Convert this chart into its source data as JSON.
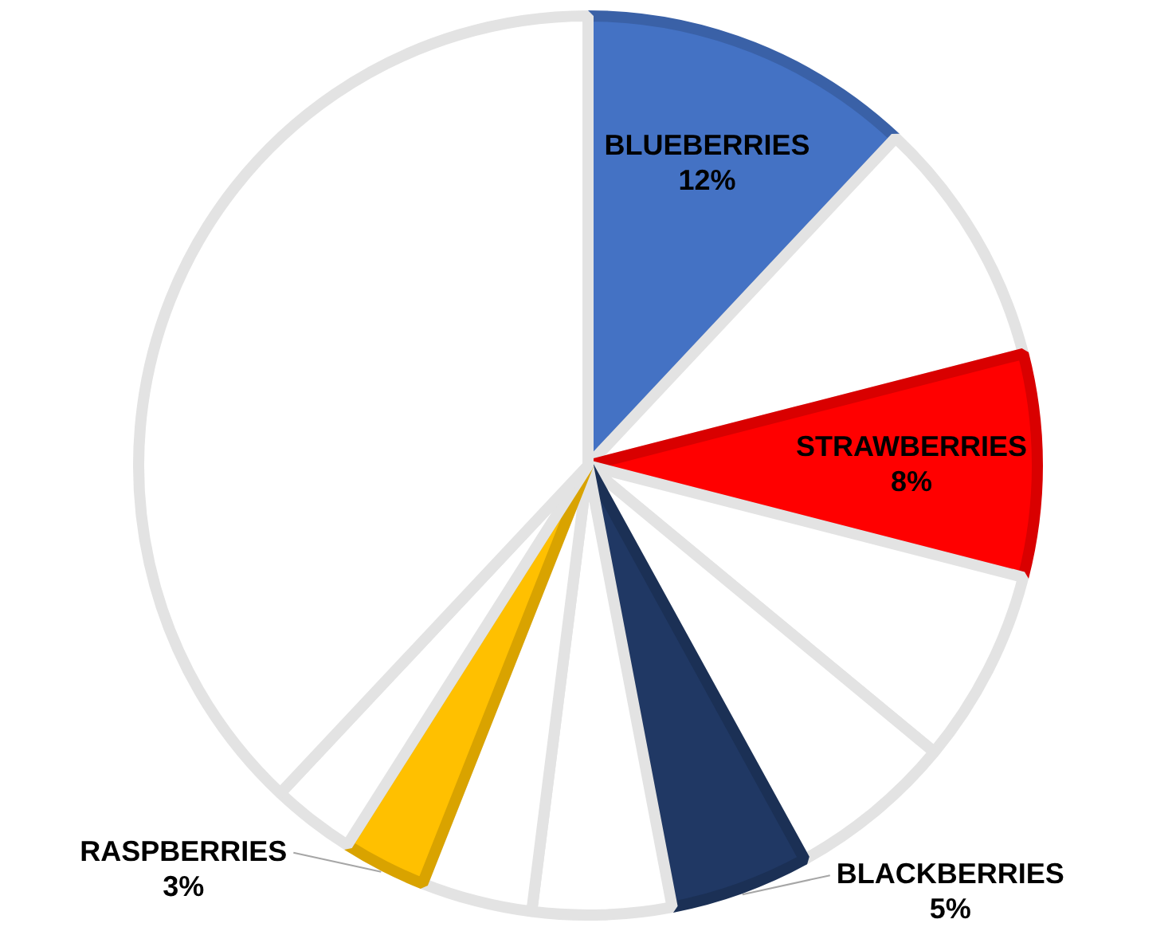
{
  "chart_data": {
    "type": "pie",
    "categories": [
      "BLUEBERRIES",
      null,
      "STRAWBERRIES",
      null,
      null,
      "BLACKBERRIES",
      null,
      null,
      "RASPBERRIES",
      null,
      null
    ],
    "values": [
      12,
      9,
      8,
      7,
      6,
      5,
      5,
      4,
      3,
      3,
      38
    ],
    "colors": [
      "#4472c4",
      "#ffffff",
      "#ff0000",
      "#ffffff",
      "#ffffff",
      "#203864",
      "#ffffff",
      "#ffffff",
      "#ffc000",
      "#ffffff",
      "#ffffff"
    ],
    "value_labels": [
      "12%",
      null,
      "8%",
      null,
      null,
      "5%",
      null,
      null,
      "3%",
      null,
      null
    ]
  }
}
